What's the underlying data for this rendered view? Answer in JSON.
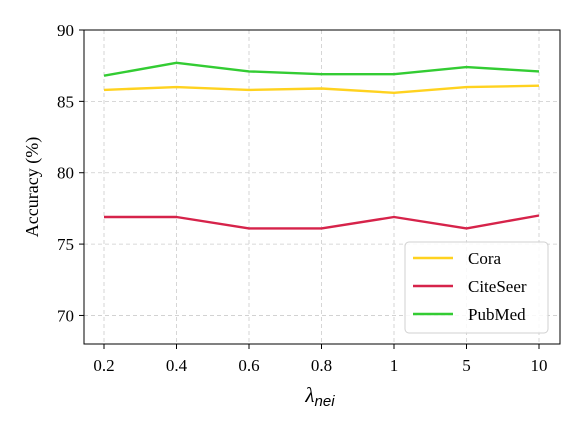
{
  "chart_data": {
    "type": "line",
    "categories": [
      "0.2",
      "0.4",
      "0.6",
      "0.8",
      "1",
      "5",
      "10"
    ],
    "series": [
      {
        "name": "Cora",
        "color": "#FFD21F",
        "values": [
          85.8,
          86.0,
          85.8,
          85.9,
          85.6,
          86.0,
          86.1
        ]
      },
      {
        "name": "CiteSeer",
        "color": "#D6234A",
        "values": [
          76.9,
          76.9,
          76.1,
          76.1,
          76.9,
          76.1,
          77.0
        ]
      },
      {
        "name": "PubMed",
        "color": "#33CC33",
        "values": [
          86.8,
          87.7,
          87.1,
          86.9,
          86.9,
          87.4,
          87.1
        ]
      }
    ],
    "xlabel_main": "λ",
    "xlabel_sub": "nei",
    "ylabel": "Accuracy (%)",
    "ylim": [
      68,
      90
    ],
    "yticks": [
      "70",
      "75",
      "80",
      "85",
      "90"
    ],
    "grid": true,
    "grid_style": "dashed",
    "legend_position": "lower-right"
  }
}
